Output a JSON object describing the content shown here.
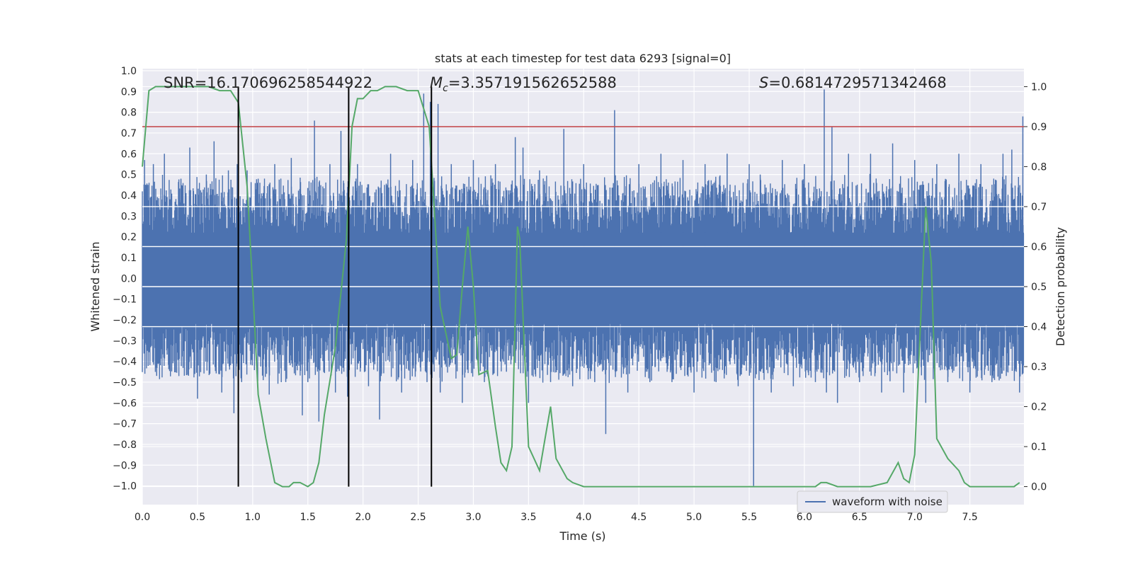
{
  "chart_data": {
    "type": "line",
    "title": "stats at each timestep for test data 6293 [signal=0]",
    "xlabel": "Time (s)",
    "ylabel_left": "Whitened strain",
    "ylabel_right": "Detection probability",
    "xlim": [
      0.0,
      7.99
    ],
    "ylim_left": [
      -1.09,
      1.01
    ],
    "ylim_right": [
      -0.045,
      1.045
    ],
    "x_ticks": [
      "0.0",
      "0.5",
      "1.0",
      "1.5",
      "2.0",
      "2.5",
      "3.0",
      "3.5",
      "4.0",
      "4.5",
      "5.0",
      "5.5",
      "6.0",
      "6.5",
      "7.0",
      "7.5"
    ],
    "y_left_ticks": [
      "−1.0",
      "−0.9",
      "−0.8",
      "−0.7",
      "−0.6",
      "−0.5",
      "−0.4",
      "−0.3",
      "−0.2",
      "−0.1",
      "0.0",
      "0.1",
      "0.2",
      "0.3",
      "0.4",
      "0.5",
      "0.6",
      "0.7",
      "0.8",
      "0.9",
      "1.0"
    ],
    "y_right_ticks": [
      "0.0",
      "0.1",
      "0.2",
      "0.3",
      "0.4",
      "0.5",
      "0.6",
      "0.7",
      "0.8",
      "0.9",
      "1.0"
    ],
    "grid": true,
    "legend": {
      "placement": "lower-right",
      "entries": [
        "waveform with noise"
      ]
    },
    "annotations": {
      "snr_label": "SNR=16.170696258544922",
      "mc_symbol": "M",
      "mc_subscript": "c",
      "mc_value": "=3.357191562652588",
      "s_symbol": "S",
      "s_value": "=0.6814729571342468"
    },
    "threshold": {
      "axis": "right",
      "value": 0.9,
      "color": "#c44e52"
    },
    "vertical_markers_x": [
      0.87,
      1.87,
      2.62
    ],
    "colors": {
      "waveform": "#4c72b0",
      "probability": "#55a868",
      "marker": "#000000",
      "axes_bg": "#eaeaf2",
      "grid": "#ffffff"
    },
    "series": [
      {
        "name": "waveform with noise",
        "axis": "left",
        "color": "#4c72b0",
        "note_typical_range": [
          -0.45,
          0.45
        ],
        "peaks": [
          {
            "x": 0.02,
            "y": 0.57
          },
          {
            "x": 0.05,
            "y": 0.45
          },
          {
            "x": 0.1,
            "y": 0.55
          },
          {
            "x": 0.13,
            "y": -0.47
          },
          {
            "x": 0.2,
            "y": 0.6
          },
          {
            "x": 0.28,
            "y": -0.4
          },
          {
            "x": 0.35,
            "y": 0.48
          },
          {
            "x": 0.43,
            "y": 0.63
          },
          {
            "x": 0.5,
            "y": -0.58
          },
          {
            "x": 0.58,
            "y": 0.5
          },
          {
            "x": 0.65,
            "y": 0.66
          },
          {
            "x": 0.72,
            "y": -0.55
          },
          {
            "x": 0.78,
            "y": 0.52
          },
          {
            "x": 0.83,
            "y": -0.65
          },
          {
            "x": 0.86,
            "y": 0.55
          },
          {
            "x": 0.9,
            "y": -0.5
          },
          {
            "x": 0.95,
            "y": 0.52
          },
          {
            "x": 1.05,
            "y": 0.48
          },
          {
            "x": 1.15,
            "y": -0.56
          },
          {
            "x": 1.2,
            "y": 0.55
          },
          {
            "x": 1.3,
            "y": -0.5
          },
          {
            "x": 1.35,
            "y": 0.58
          },
          {
            "x": 1.45,
            "y": -0.66
          },
          {
            "x": 1.5,
            "y": -0.5
          },
          {
            "x": 1.56,
            "y": 0.76
          },
          {
            "x": 1.6,
            "y": -0.69
          },
          {
            "x": 1.7,
            "y": 0.55
          },
          {
            "x": 1.75,
            "y": -0.55
          },
          {
            "x": 1.8,
            "y": 0.71
          },
          {
            "x": 1.86,
            "y": -0.57
          },
          {
            "x": 1.95,
            "y": 0.55
          },
          {
            "x": 2.05,
            "y": -0.52
          },
          {
            "x": 2.15,
            "y": -0.68
          },
          {
            "x": 2.25,
            "y": 0.6
          },
          {
            "x": 2.35,
            "y": -0.55
          },
          {
            "x": 2.45,
            "y": 0.57
          },
          {
            "x": 2.55,
            "y": 0.89
          },
          {
            "x": 2.58,
            "y": -0.5
          },
          {
            "x": 2.61,
            "y": 0.85
          },
          {
            "x": 2.68,
            "y": 0.84
          },
          {
            "x": 2.7,
            "y": -0.55
          },
          {
            "x": 2.8,
            "y": 0.55
          },
          {
            "x": 2.9,
            "y": -0.6
          },
          {
            "x": 3.0,
            "y": 0.57
          },
          {
            "x": 3.1,
            "y": -0.5
          },
          {
            "x": 3.2,
            "y": 0.55
          },
          {
            "x": 3.3,
            "y": -0.45
          },
          {
            "x": 3.38,
            "y": 0.68
          },
          {
            "x": 3.45,
            "y": 0.63
          },
          {
            "x": 3.5,
            "y": -0.6
          },
          {
            "x": 3.6,
            "y": 0.52
          },
          {
            "x": 3.7,
            "y": -0.5
          },
          {
            "x": 3.82,
            "y": 0.72
          },
          {
            "x": 3.9,
            "y": -0.52
          },
          {
            "x": 4.0,
            "y": 0.55
          },
          {
            "x": 4.1,
            "y": -0.5
          },
          {
            "x": 4.2,
            "y": -0.75
          },
          {
            "x": 4.28,
            "y": 0.81
          },
          {
            "x": 4.4,
            "y": -0.55
          },
          {
            "x": 4.5,
            "y": 0.55
          },
          {
            "x": 4.6,
            "y": -0.5
          },
          {
            "x": 4.7,
            "y": 0.6
          },
          {
            "x": 4.8,
            "y": -0.5
          },
          {
            "x": 4.9,
            "y": 0.57
          },
          {
            "x": 5.0,
            "y": -0.55
          },
          {
            "x": 5.1,
            "y": 0.55
          },
          {
            "x": 5.2,
            "y": -0.5
          },
          {
            "x": 5.3,
            "y": 0.6
          },
          {
            "x": 5.4,
            "y": -0.52
          },
          {
            "x": 5.5,
            "y": 0.55
          },
          {
            "x": 5.54,
            "y": -1.0
          },
          {
            "x": 5.6,
            "y": 0.5
          },
          {
            "x": 5.7,
            "y": -0.55
          },
          {
            "x": 5.8,
            "y": 0.57
          },
          {
            "x": 5.9,
            "y": -0.52
          },
          {
            "x": 6.0,
            "y": 0.55
          },
          {
            "x": 6.1,
            "y": -0.5
          },
          {
            "x": 6.18,
            "y": 0.91
          },
          {
            "x": 6.2,
            "y": -0.55
          },
          {
            "x": 6.25,
            "y": 0.73
          },
          {
            "x": 6.3,
            "y": -0.6
          },
          {
            "x": 6.4,
            "y": 0.6
          },
          {
            "x": 6.5,
            "y": -0.5
          },
          {
            "x": 6.6,
            "y": 0.6
          },
          {
            "x": 6.7,
            "y": -0.55
          },
          {
            "x": 6.8,
            "y": 0.65
          },
          {
            "x": 6.9,
            "y": -0.55
          },
          {
            "x": 7.0,
            "y": 0.57
          },
          {
            "x": 7.1,
            "y": -0.6
          },
          {
            "x": 7.2,
            "y": 0.55
          },
          {
            "x": 7.3,
            "y": -0.5
          },
          {
            "x": 7.4,
            "y": 0.6
          },
          {
            "x": 7.5,
            "y": -0.55
          },
          {
            "x": 7.6,
            "y": 0.55
          },
          {
            "x": 7.7,
            "y": -0.5
          },
          {
            "x": 7.8,
            "y": 0.6
          },
          {
            "x": 7.88,
            "y": 0.62
          },
          {
            "x": 7.95,
            "y": -0.55
          },
          {
            "x": 7.98,
            "y": 0.78
          }
        ]
      },
      {
        "axis": "right",
        "color": "#55a868",
        "x": [
          0.0,
          0.06,
          0.12,
          0.2,
          0.3,
          0.4,
          0.5,
          0.6,
          0.7,
          0.8,
          0.87,
          0.95,
          1.0,
          1.05,
          1.12,
          1.2,
          1.27,
          1.33,
          1.37,
          1.43,
          1.5,
          1.55,
          1.6,
          1.65,
          1.75,
          1.85,
          1.9,
          1.95,
          2.0,
          2.07,
          2.13,
          2.2,
          2.3,
          2.4,
          2.5,
          2.6,
          2.7,
          2.8,
          2.85,
          2.9,
          2.95,
          3.0,
          3.05,
          3.13,
          3.2,
          3.25,
          3.3,
          3.35,
          3.4,
          3.42,
          3.5,
          3.6,
          3.65,
          3.7,
          3.75,
          3.85,
          3.9,
          4.0,
          4.2,
          4.5,
          4.8,
          5.0,
          5.4,
          5.55,
          5.8,
          6.1,
          6.15,
          6.2,
          6.3,
          6.5,
          6.6,
          6.75,
          6.85,
          6.9,
          6.95,
          7.0,
          7.1,
          7.15,
          7.2,
          7.3,
          7.4,
          7.45,
          7.5,
          7.6,
          7.8,
          7.9,
          7.95
        ],
        "y": [
          0.8,
          0.99,
          1.0,
          1.0,
          1.0,
          1.0,
          1.0,
          1.0,
          0.99,
          0.99,
          0.96,
          0.75,
          0.5,
          0.23,
          0.12,
          0.01,
          0.0,
          0.0,
          0.01,
          0.01,
          0.0,
          0.01,
          0.06,
          0.18,
          0.35,
          0.62,
          0.9,
          0.97,
          0.97,
          0.99,
          0.99,
          1.0,
          1.0,
          0.99,
          0.99,
          0.9,
          0.45,
          0.32,
          0.33,
          0.5,
          0.65,
          0.5,
          0.28,
          0.29,
          0.15,
          0.06,
          0.04,
          0.1,
          0.65,
          0.62,
          0.1,
          0.04,
          0.12,
          0.2,
          0.07,
          0.02,
          0.01,
          0.0,
          0.0,
          0.0,
          0.0,
          0.0,
          0.0,
          0.0,
          0.0,
          0.0,
          0.01,
          0.01,
          0.0,
          0.0,
          0.0,
          0.01,
          0.06,
          0.02,
          0.01,
          0.08,
          0.7,
          0.56,
          0.12,
          0.07,
          0.04,
          0.01,
          0.0,
          0.0,
          0.0,
          0.0,
          0.01
        ]
      }
    ]
  }
}
